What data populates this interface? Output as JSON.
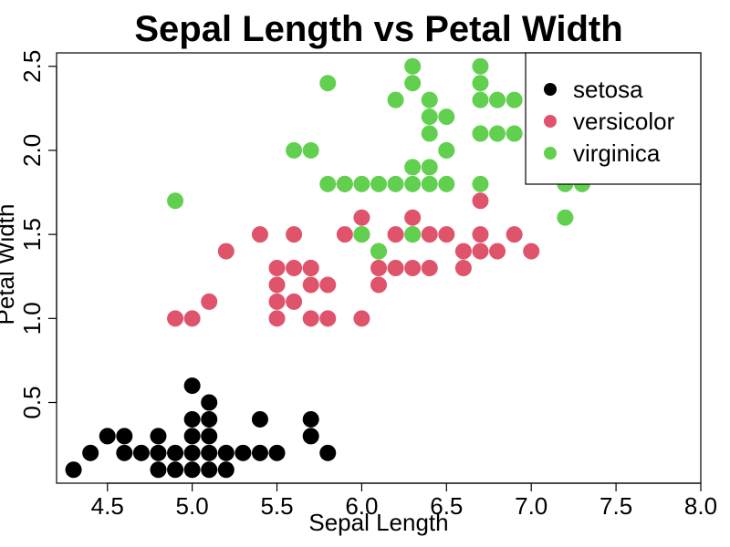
{
  "chart_data": {
    "type": "scatter",
    "title": "Sepal Length vs Petal Width",
    "xlabel": "Sepal Length",
    "ylabel": "Petal Width",
    "xlim": [
      4.2,
      8.0
    ],
    "ylim": [
      0.02,
      2.58
    ],
    "xticks": [
      "4.5",
      "5.0",
      "5.5",
      "6.0",
      "6.5",
      "7.0",
      "7.5",
      "8.0"
    ],
    "yticks": [
      "0.5",
      "1.0",
      "1.5",
      "2.0",
      "2.5"
    ],
    "legend": {
      "position": "top-right"
    },
    "series": [
      {
        "name": "setosa",
        "color": "#000000",
        "x": [
          4.3,
          4.4,
          4.5,
          4.6,
          4.6,
          4.7,
          4.8,
          4.8,
          4.8,
          4.9,
          4.9,
          5.0,
          5.0,
          5.0,
          5.0,
          5.0,
          5.1,
          5.1,
          5.1,
          5.1,
          5.1,
          5.2,
          5.2,
          5.3,
          5.4,
          5.4,
          5.5,
          5.7,
          5.7,
          5.8
        ],
        "y": [
          0.1,
          0.2,
          0.3,
          0.3,
          0.2,
          0.2,
          0.3,
          0.2,
          0.1,
          0.2,
          0.1,
          0.6,
          0.4,
          0.3,
          0.2,
          0.1,
          0.5,
          0.4,
          0.3,
          0.2,
          0.1,
          0.2,
          0.1,
          0.2,
          0.4,
          0.2,
          0.2,
          0.4,
          0.3,
          0.2
        ]
      },
      {
        "name": "versicolor",
        "color": "#DF536B",
        "x": [
          4.9,
          5.0,
          5.1,
          5.2,
          5.4,
          5.5,
          5.5,
          5.5,
          5.5,
          5.6,
          5.6,
          5.6,
          5.7,
          5.7,
          5.7,
          5.7,
          5.8,
          5.8,
          5.9,
          5.9,
          6.0,
          6.0,
          6.0,
          6.1,
          6.1,
          6.1,
          6.2,
          6.2,
          6.3,
          6.3,
          6.3,
          6.4,
          6.4,
          6.5,
          6.6,
          6.6,
          6.7,
          6.7,
          6.7,
          6.8,
          6.9,
          7.0
        ],
        "y": [
          1.0,
          1.0,
          1.1,
          1.4,
          1.5,
          1.3,
          1.2,
          1.1,
          1.0,
          1.5,
          1.3,
          1.1,
          1.3,
          1.2,
          1.0,
          1.3,
          1.2,
          1.0,
          1.5,
          1.8,
          1.6,
          1.5,
          1.0,
          1.4,
          1.3,
          1.2,
          1.5,
          1.3,
          1.6,
          1.5,
          1.3,
          1.5,
          1.3,
          1.5,
          1.4,
          1.3,
          1.7,
          1.5,
          1.4,
          1.4,
          1.5,
          1.4
        ]
      },
      {
        "name": "virginica",
        "color": "#61D04F",
        "x": [
          4.9,
          5.6,
          5.7,
          5.8,
          5.8,
          5.9,
          6.0,
          6.0,
          6.1,
          6.1,
          6.2,
          6.2,
          6.3,
          6.3,
          6.3,
          6.3,
          6.3,
          6.4,
          6.4,
          6.4,
          6.4,
          6.4,
          6.5,
          6.5,
          6.5,
          6.5,
          6.7,
          6.7,
          6.7,
          6.7,
          6.7,
          6.8,
          6.8,
          6.9,
          6.9,
          7.2,
          7.2,
          7.3
        ],
        "y": [
          1.7,
          2.0,
          2.0,
          2.4,
          1.8,
          1.8,
          1.8,
          1.5,
          1.8,
          1.4,
          2.3,
          1.8,
          2.5,
          1.9,
          1.8,
          2.4,
          1.5,
          2.3,
          2.2,
          2.1,
          1.9,
          1.8,
          2.2,
          2.0,
          1.8,
          2.0,
          2.5,
          2.4,
          2.3,
          2.1,
          1.8,
          2.3,
          2.1,
          2.3,
          2.1,
          1.8,
          1.6,
          1.8
        ]
      }
    ]
  }
}
